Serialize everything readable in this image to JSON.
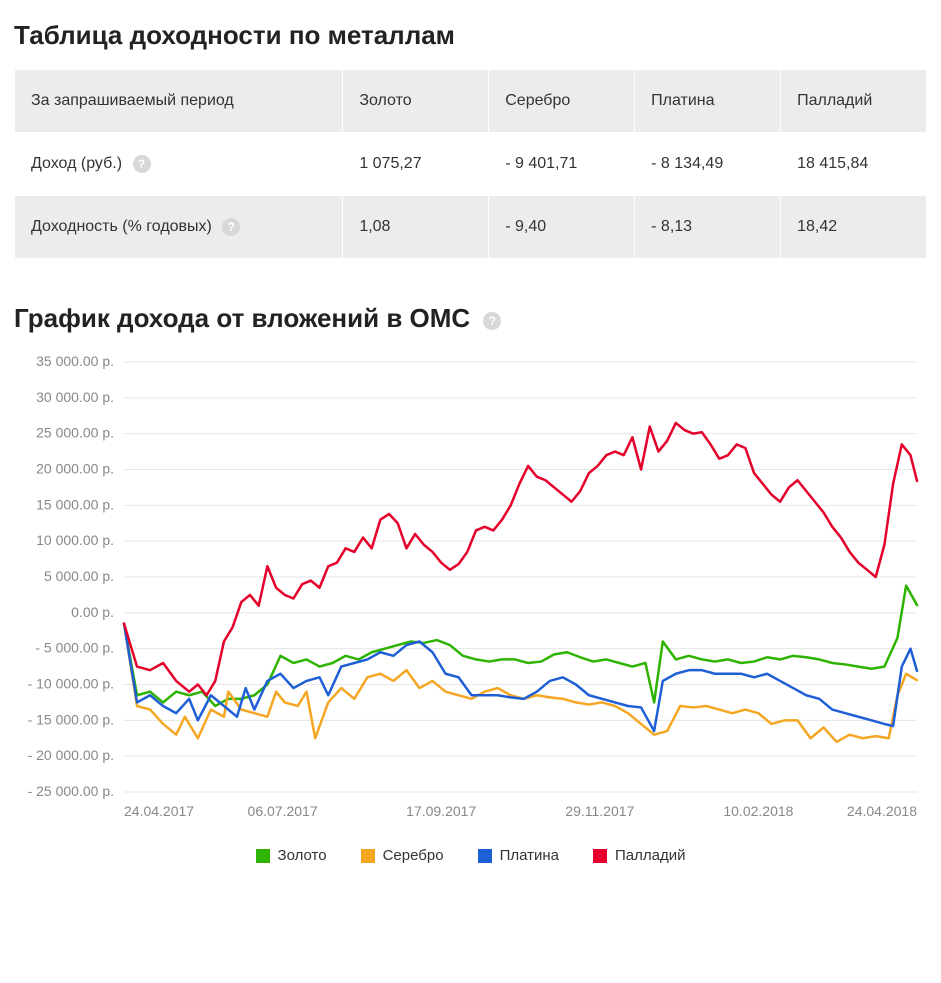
{
  "table_section": {
    "title": "Таблица доходности по металлам",
    "header_metric": "За запрашиваемый период",
    "metals": [
      "Золото",
      "Серебро",
      "Платина",
      "Палладий"
    ],
    "rows": [
      {
        "label": "Доход (руб.)",
        "has_help": true,
        "values": [
          "1 075,27",
          "- 9 401,71",
          "- 8 134,49",
          "18 415,84"
        ]
      },
      {
        "label": "Доходность (% годовых)",
        "has_help": true,
        "values": [
          "1,08",
          "- 9,40",
          "- 8,13",
          "18,42"
        ]
      }
    ],
    "header_bg": "#ececec",
    "row_bg_even": "#ececec",
    "row_bg_odd": "#ffffff",
    "border_color": "#ffffff",
    "font_size": 16
  },
  "chart_section": {
    "title": "График дохода от вложений в ОМС",
    "has_help": true,
    "type": "line",
    "background_color": "#ffffff",
    "grid_color": "#e6e6e6",
    "axis_text_color": "#888888",
    "axis_fontsize": 14,
    "line_width": 2.5,
    "xlim": [
      0,
      365
    ],
    "ylim": [
      -25000,
      35000
    ],
    "ytick_step": 5000,
    "ytick_suffix": " p.",
    "ytick_format": "spaced_two_decimals",
    "x_ticks": [
      {
        "pos": 0,
        "label": "24.04.2017"
      },
      {
        "pos": 73,
        "label": "06.07.2017"
      },
      {
        "pos": 146,
        "label": "17.09.2017"
      },
      {
        "pos": 219,
        "label": "29.11.2017"
      },
      {
        "pos": 292,
        "label": "10.02.2018"
      },
      {
        "pos": 365,
        "label": "24.04.2018"
      }
    ],
    "series": [
      {
        "name": "Золото",
        "color": "#2db300",
        "data": [
          [
            0,
            -1500
          ],
          [
            6,
            -11500
          ],
          [
            12,
            -11000
          ],
          [
            18,
            -12500
          ],
          [
            24,
            -11000
          ],
          [
            30,
            -11500
          ],
          [
            36,
            -11000
          ],
          [
            42,
            -13000
          ],
          [
            48,
            -12000
          ],
          [
            54,
            -12000
          ],
          [
            60,
            -11500
          ],
          [
            66,
            -10000
          ],
          [
            72,
            -6000
          ],
          [
            78,
            -7000
          ],
          [
            84,
            -6500
          ],
          [
            90,
            -7500
          ],
          [
            96,
            -7000
          ],
          [
            102,
            -6000
          ],
          [
            108,
            -6500
          ],
          [
            114,
            -5500
          ],
          [
            120,
            -5000
          ],
          [
            126,
            -4500
          ],
          [
            132,
            -4000
          ],
          [
            138,
            -4200
          ],
          [
            144,
            -3800
          ],
          [
            150,
            -4500
          ],
          [
            156,
            -6000
          ],
          [
            162,
            -6500
          ],
          [
            168,
            -6800
          ],
          [
            174,
            -6500
          ],
          [
            180,
            -6500
          ],
          [
            186,
            -7000
          ],
          [
            192,
            -6800
          ],
          [
            198,
            -5800
          ],
          [
            204,
            -5500
          ],
          [
            210,
            -6200
          ],
          [
            216,
            -6800
          ],
          [
            222,
            -6500
          ],
          [
            228,
            -7000
          ],
          [
            234,
            -7500
          ],
          [
            240,
            -7000
          ],
          [
            244,
            -12500
          ],
          [
            248,
            -4000
          ],
          [
            254,
            -6500
          ],
          [
            260,
            -6000
          ],
          [
            266,
            -6500
          ],
          [
            272,
            -6800
          ],
          [
            278,
            -6500
          ],
          [
            284,
            -7000
          ],
          [
            290,
            -6800
          ],
          [
            296,
            -6200
          ],
          [
            302,
            -6500
          ],
          [
            308,
            -6000
          ],
          [
            314,
            -6200
          ],
          [
            320,
            -6500
          ],
          [
            326,
            -7000
          ],
          [
            332,
            -7200
          ],
          [
            338,
            -7500
          ],
          [
            344,
            -7800
          ],
          [
            350,
            -7500
          ],
          [
            356,
            -3500
          ],
          [
            360,
            3800
          ],
          [
            365,
            1075
          ]
        ]
      },
      {
        "name": "Серебро",
        "color": "#f5a623",
        "data": [
          [
            0,
            -1500
          ],
          [
            6,
            -13000
          ],
          [
            12,
            -13500
          ],
          [
            18,
            -15500
          ],
          [
            24,
            -17000
          ],
          [
            28,
            -14500
          ],
          [
            34,
            -17500
          ],
          [
            40,
            -13500
          ],
          [
            46,
            -14500
          ],
          [
            48,
            -11000
          ],
          [
            54,
            -13500
          ],
          [
            60,
            -14000
          ],
          [
            66,
            -14500
          ],
          [
            70,
            -11000
          ],
          [
            74,
            -12500
          ],
          [
            80,
            -13000
          ],
          [
            84,
            -11000
          ],
          [
            88,
            -17500
          ],
          [
            94,
            -12500
          ],
          [
            100,
            -10500
          ],
          [
            106,
            -12000
          ],
          [
            112,
            -9000
          ],
          [
            118,
            -8500
          ],
          [
            124,
            -9500
          ],
          [
            130,
            -8000
          ],
          [
            136,
            -10500
          ],
          [
            142,
            -9500
          ],
          [
            148,
            -11000
          ],
          [
            154,
            -11500
          ],
          [
            160,
            -12000
          ],
          [
            166,
            -11000
          ],
          [
            172,
            -10500
          ],
          [
            178,
            -11500
          ],
          [
            184,
            -12000
          ],
          [
            190,
            -11500
          ],
          [
            196,
            -11800
          ],
          [
            202,
            -12000
          ],
          [
            208,
            -12500
          ],
          [
            214,
            -12800
          ],
          [
            220,
            -12500
          ],
          [
            226,
            -13000
          ],
          [
            232,
            -14000
          ],
          [
            238,
            -15500
          ],
          [
            244,
            -17000
          ],
          [
            250,
            -16500
          ],
          [
            256,
            -13000
          ],
          [
            262,
            -13200
          ],
          [
            268,
            -13000
          ],
          [
            274,
            -13500
          ],
          [
            280,
            -14000
          ],
          [
            286,
            -13500
          ],
          [
            292,
            -14000
          ],
          [
            298,
            -15500
          ],
          [
            304,
            -15000
          ],
          [
            310,
            -15000
          ],
          [
            316,
            -17500
          ],
          [
            322,
            -16000
          ],
          [
            328,
            -18000
          ],
          [
            334,
            -17000
          ],
          [
            340,
            -17500
          ],
          [
            346,
            -17200
          ],
          [
            352,
            -17500
          ],
          [
            356,
            -11500
          ],
          [
            360,
            -8500
          ],
          [
            365,
            -9400
          ]
        ]
      },
      {
        "name": "Платина",
        "color": "#1f5fd6",
        "data": [
          [
            0,
            -1500
          ],
          [
            6,
            -12500
          ],
          [
            12,
            -11500
          ],
          [
            18,
            -13000
          ],
          [
            24,
            -14000
          ],
          [
            30,
            -12000
          ],
          [
            34,
            -15000
          ],
          [
            40,
            -11500
          ],
          [
            46,
            -13000
          ],
          [
            52,
            -14500
          ],
          [
            56,
            -10500
          ],
          [
            60,
            -13500
          ],
          [
            66,
            -9500
          ],
          [
            72,
            -8500
          ],
          [
            78,
            -10500
          ],
          [
            84,
            -9500
          ],
          [
            90,
            -9000
          ],
          [
            94,
            -11500
          ],
          [
            100,
            -7500
          ],
          [
            106,
            -7000
          ],
          [
            112,
            -6500
          ],
          [
            118,
            -5500
          ],
          [
            124,
            -6000
          ],
          [
            130,
            -4500
          ],
          [
            136,
            -4000
          ],
          [
            142,
            -5500
          ],
          [
            148,
            -8500
          ],
          [
            154,
            -9000
          ],
          [
            160,
            -11500
          ],
          [
            166,
            -11500
          ],
          [
            172,
            -11500
          ],
          [
            178,
            -11800
          ],
          [
            184,
            -12000
          ],
          [
            190,
            -11000
          ],
          [
            196,
            -9500
          ],
          [
            202,
            -9000
          ],
          [
            208,
            -10000
          ],
          [
            214,
            -11500
          ],
          [
            220,
            -12000
          ],
          [
            226,
            -12500
          ],
          [
            232,
            -13000
          ],
          [
            238,
            -13200
          ],
          [
            244,
            -16500
          ],
          [
            248,
            -9500
          ],
          [
            254,
            -8500
          ],
          [
            260,
            -8000
          ],
          [
            266,
            -8000
          ],
          [
            272,
            -8500
          ],
          [
            278,
            -8500
          ],
          [
            284,
            -8500
          ],
          [
            290,
            -9000
          ],
          [
            296,
            -8500
          ],
          [
            302,
            -9500
          ],
          [
            308,
            -10500
          ],
          [
            314,
            -11500
          ],
          [
            320,
            -12000
          ],
          [
            326,
            -13500
          ],
          [
            332,
            -14000
          ],
          [
            338,
            -14500
          ],
          [
            344,
            -15000
          ],
          [
            350,
            -15500
          ],
          [
            354,
            -15800
          ],
          [
            358,
            -7500
          ],
          [
            362,
            -5000
          ],
          [
            365,
            -8100
          ]
        ]
      },
      {
        "name": "Палладий",
        "color": "#e4002b",
        "data": [
          [
            0,
            -1500
          ],
          [
            6,
            -7500
          ],
          [
            12,
            -8000
          ],
          [
            18,
            -7000
          ],
          [
            24,
            -9500
          ],
          [
            30,
            -11000
          ],
          [
            34,
            -10000
          ],
          [
            38,
            -11500
          ],
          [
            42,
            -9500
          ],
          [
            46,
            -4000
          ],
          [
            50,
            -2000
          ],
          [
            54,
            1500
          ],
          [
            58,
            2500
          ],
          [
            62,
            1000
          ],
          [
            66,
            6500
          ],
          [
            70,
            3500
          ],
          [
            74,
            2500
          ],
          [
            78,
            2000
          ],
          [
            82,
            4000
          ],
          [
            86,
            4500
          ],
          [
            90,
            3500
          ],
          [
            94,
            6500
          ],
          [
            98,
            7000
          ],
          [
            102,
            9000
          ],
          [
            106,
            8500
          ],
          [
            110,
            10500
          ],
          [
            114,
            9000
          ],
          [
            118,
            13000
          ],
          [
            122,
            13800
          ],
          [
            126,
            12500
          ],
          [
            130,
            9000
          ],
          [
            134,
            11000
          ],
          [
            138,
            9500
          ],
          [
            142,
            8500
          ],
          [
            146,
            7000
          ],
          [
            150,
            6000
          ],
          [
            154,
            6800
          ],
          [
            158,
            8500
          ],
          [
            162,
            11500
          ],
          [
            166,
            12000
          ],
          [
            170,
            11500
          ],
          [
            174,
            13000
          ],
          [
            178,
            15000
          ],
          [
            182,
            18000
          ],
          [
            186,
            20500
          ],
          [
            190,
            19000
          ],
          [
            194,
            18500
          ],
          [
            198,
            17500
          ],
          [
            202,
            16500
          ],
          [
            206,
            15500
          ],
          [
            210,
            17000
          ],
          [
            214,
            19500
          ],
          [
            218,
            20500
          ],
          [
            222,
            22000
          ],
          [
            226,
            22500
          ],
          [
            230,
            22000
          ],
          [
            234,
            24500
          ],
          [
            238,
            20000
          ],
          [
            242,
            26000
          ],
          [
            246,
            22500
          ],
          [
            250,
            24000
          ],
          [
            254,
            26500
          ],
          [
            258,
            25500
          ],
          [
            262,
            25000
          ],
          [
            266,
            25200
          ],
          [
            270,
            23500
          ],
          [
            274,
            21500
          ],
          [
            278,
            22000
          ],
          [
            282,
            23500
          ],
          [
            286,
            23000
          ],
          [
            290,
            19500
          ],
          [
            294,
            18000
          ],
          [
            298,
            16500
          ],
          [
            302,
            15500
          ],
          [
            306,
            17500
          ],
          [
            310,
            18500
          ],
          [
            314,
            17000
          ],
          [
            318,
            15500
          ],
          [
            322,
            14000
          ],
          [
            326,
            12000
          ],
          [
            330,
            10500
          ],
          [
            334,
            8500
          ],
          [
            338,
            7000
          ],
          [
            342,
            6000
          ],
          [
            346,
            5000
          ],
          [
            350,
            9500
          ],
          [
            354,
            18000
          ],
          [
            358,
            23500
          ],
          [
            362,
            22000
          ],
          [
            365,
            18400
          ]
        ]
      }
    ],
    "legend": [
      {
        "label": "Золото",
        "color": "#2db300"
      },
      {
        "label": "Серебро",
        "color": "#f5a623"
      },
      {
        "label": "Платина",
        "color": "#1f5fd6"
      },
      {
        "label": "Палладий",
        "color": "#e4002b"
      }
    ]
  }
}
